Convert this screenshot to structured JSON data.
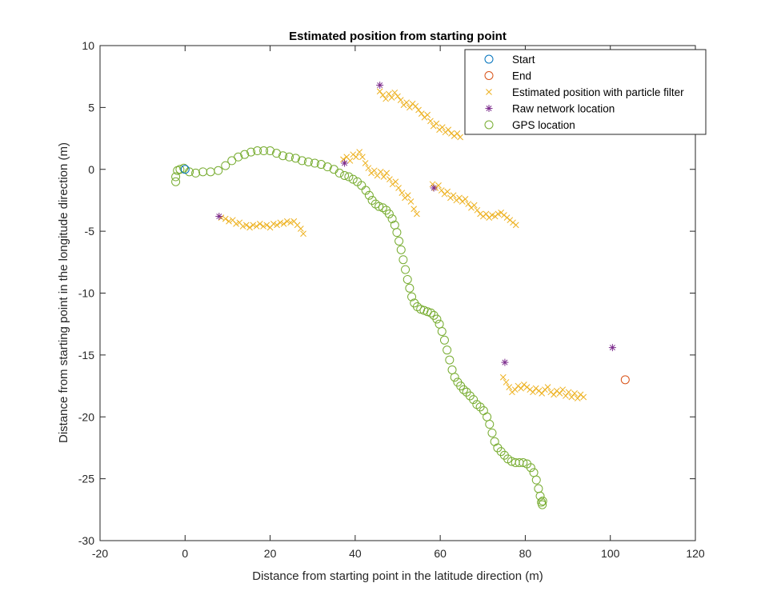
{
  "chart_data": {
    "type": "scatter",
    "title": "Estimated position from starting point",
    "xlabel": "Distance from starting point in the latitude direction (m)",
    "ylabel": "Distance from starting point in the longitude direction (m)",
    "xlim": [
      -20,
      120
    ],
    "ylim": [
      -30,
      10
    ],
    "xticks": [
      -20,
      0,
      20,
      40,
      60,
      80,
      100,
      120
    ],
    "yticks": [
      -30,
      -25,
      -20,
      -15,
      -10,
      -5,
      0,
      5,
      10
    ],
    "grid": false,
    "legend_position": "top-right",
    "series": [
      {
        "name": "Start",
        "marker": "circle",
        "color": "#0072BD",
        "points": [
          [
            0,
            0
          ]
        ]
      },
      {
        "name": "End",
        "marker": "circle",
        "color": "#D95319",
        "points": [
          [
            103.5,
            -17.0
          ]
        ]
      },
      {
        "name": "Estimated position with particle filter",
        "marker": "x",
        "color": "#EDB120",
        "points": [
          [
            8.5,
            -3.9
          ],
          [
            9.5,
            -4.0
          ],
          [
            10.3,
            -4.2
          ],
          [
            11.2,
            -4.1
          ],
          [
            12.0,
            -4.4
          ],
          [
            12.8,
            -4.3
          ],
          [
            13.6,
            -4.6
          ],
          [
            14.4,
            -4.5
          ],
          [
            15.2,
            -4.7
          ],
          [
            16.0,
            -4.5
          ],
          [
            16.8,
            -4.6
          ],
          [
            17.6,
            -4.4
          ],
          [
            18.4,
            -4.6
          ],
          [
            19.2,
            -4.5
          ],
          [
            20.0,
            -4.7
          ],
          [
            20.8,
            -4.4
          ],
          [
            21.6,
            -4.5
          ],
          [
            22.4,
            -4.3
          ],
          [
            23.2,
            -4.4
          ],
          [
            24.0,
            -4.2
          ],
          [
            24.8,
            -4.3
          ],
          [
            25.6,
            -4.2
          ],
          [
            26.4,
            -4.5
          ],
          [
            27.2,
            -4.8
          ],
          [
            27.8,
            -5.2
          ],
          [
            37.2,
            0.8
          ],
          [
            38.0,
            1.0
          ],
          [
            38.8,
            0.7
          ],
          [
            39.5,
            1.2
          ],
          [
            40.2,
            1.0
          ],
          [
            41.0,
            1.4
          ],
          [
            41.7,
            1.0
          ],
          [
            42.4,
            0.5
          ],
          [
            43.1,
            0.1
          ],
          [
            43.8,
            -0.3
          ],
          [
            44.5,
            -0.1
          ],
          [
            45.2,
            -0.5
          ],
          [
            46.0,
            -0.2
          ],
          [
            46.7,
            -0.6
          ],
          [
            47.4,
            -0.3
          ],
          [
            48.1,
            -0.8
          ],
          [
            48.8,
            -1.2
          ],
          [
            49.5,
            -1.0
          ],
          [
            50.2,
            -1.5
          ],
          [
            51.0,
            -1.9
          ],
          [
            51.7,
            -2.3
          ],
          [
            52.4,
            -2.1
          ],
          [
            53.1,
            -2.6
          ],
          [
            53.8,
            -3.2
          ],
          [
            54.5,
            -3.6
          ],
          [
            45.8,
            6.3
          ],
          [
            46.5,
            6.0
          ],
          [
            47.2,
            5.7
          ],
          [
            47.9,
            6.1
          ],
          [
            48.6,
            5.8
          ],
          [
            49.3,
            6.2
          ],
          [
            50.0,
            5.9
          ],
          [
            50.7,
            5.6
          ],
          [
            51.4,
            5.2
          ],
          [
            52.1,
            5.4
          ],
          [
            52.8,
            5.0
          ],
          [
            53.5,
            5.3
          ],
          [
            54.2,
            5.1
          ],
          [
            54.9,
            4.8
          ],
          [
            55.6,
            4.5
          ],
          [
            56.3,
            4.2
          ],
          [
            57.0,
            4.4
          ],
          [
            57.7,
            3.9
          ],
          [
            58.4,
            3.5
          ],
          [
            59.1,
            3.7
          ],
          [
            59.8,
            3.2
          ],
          [
            60.5,
            3.4
          ],
          [
            61.2,
            3.0
          ],
          [
            61.9,
            3.2
          ],
          [
            62.6,
            2.9
          ],
          [
            63.3,
            2.7
          ],
          [
            64.0,
            2.9
          ],
          [
            64.7,
            2.6
          ],
          [
            58.2,
            -1.2
          ],
          [
            58.9,
            -1.5
          ],
          [
            59.6,
            -1.3
          ],
          [
            60.3,
            -1.7
          ],
          [
            61.0,
            -2.0
          ],
          [
            61.7,
            -1.8
          ],
          [
            62.4,
            -2.3
          ],
          [
            63.1,
            -2.1
          ],
          [
            63.8,
            -2.5
          ],
          [
            64.5,
            -2.3
          ],
          [
            65.2,
            -2.6
          ],
          [
            65.9,
            -2.4
          ],
          [
            66.6,
            -2.8
          ],
          [
            67.3,
            -3.1
          ],
          [
            68.0,
            -2.9
          ],
          [
            68.7,
            -3.3
          ],
          [
            69.4,
            -3.6
          ],
          [
            70.1,
            -3.8
          ],
          [
            70.8,
            -3.6
          ],
          [
            71.5,
            -3.9
          ],
          [
            72.2,
            -3.7
          ],
          [
            72.9,
            -3.8
          ],
          [
            73.6,
            -3.6
          ],
          [
            74.3,
            -3.5
          ],
          [
            75.0,
            -3.7
          ],
          [
            75.7,
            -3.9
          ],
          [
            76.4,
            -4.1
          ],
          [
            77.1,
            -4.3
          ],
          [
            77.8,
            -4.5
          ],
          [
            74.8,
            -16.8
          ],
          [
            75.5,
            -17.2
          ],
          [
            76.2,
            -17.6
          ],
          [
            76.9,
            -18.0
          ],
          [
            77.6,
            -17.8
          ],
          [
            78.3,
            -17.5
          ],
          [
            79.0,
            -17.7
          ],
          [
            79.7,
            -17.4
          ],
          [
            80.4,
            -17.6
          ],
          [
            81.1,
            -17.8
          ],
          [
            81.8,
            -18.0
          ],
          [
            82.5,
            -17.7
          ],
          [
            83.2,
            -17.9
          ],
          [
            83.9,
            -18.1
          ],
          [
            84.6,
            -17.8
          ],
          [
            85.3,
            -17.6
          ],
          [
            86.0,
            -18.0
          ],
          [
            86.7,
            -18.2
          ],
          [
            87.4,
            -17.9
          ],
          [
            88.1,
            -18.1
          ],
          [
            88.8,
            -17.8
          ],
          [
            89.5,
            -18.3
          ],
          [
            90.2,
            -18.0
          ],
          [
            90.9,
            -18.4
          ],
          [
            91.6,
            -18.1
          ],
          [
            92.3,
            -18.5
          ],
          [
            93.0,
            -18.2
          ],
          [
            93.7,
            -18.4
          ]
        ]
      },
      {
        "name": "Raw network location",
        "marker": "asterisk",
        "color": "#7E2F8E",
        "points": [
          [
            8.0,
            -3.8
          ],
          [
            37.5,
            0.5
          ],
          [
            45.8,
            6.8
          ],
          [
            58.5,
            -1.5
          ],
          [
            75.2,
            -15.6
          ],
          [
            100.5,
            -14.4
          ]
        ]
      },
      {
        "name": "GPS location",
        "marker": "circle",
        "color": "#77AC30",
        "points": [
          [
            -2.2,
            -1.0
          ],
          [
            -2.2,
            -0.6
          ],
          [
            -1.8,
            -0.1
          ],
          [
            -1.2,
            0.0
          ],
          [
            -0.3,
            0.1
          ],
          [
            1.0,
            -0.2
          ],
          [
            2.5,
            -0.3
          ],
          [
            4.2,
            -0.2
          ],
          [
            6.0,
            -0.2
          ],
          [
            7.8,
            -0.1
          ],
          [
            9.5,
            0.3
          ],
          [
            11.0,
            0.7
          ],
          [
            12.5,
            1.0
          ],
          [
            14.0,
            1.2
          ],
          [
            15.5,
            1.4
          ],
          [
            17.0,
            1.5
          ],
          [
            18.5,
            1.5
          ],
          [
            20.0,
            1.5
          ],
          [
            21.5,
            1.3
          ],
          [
            23.0,
            1.1
          ],
          [
            24.5,
            1.0
          ],
          [
            26.0,
            0.9
          ],
          [
            27.5,
            0.7
          ],
          [
            29.0,
            0.6
          ],
          [
            30.5,
            0.5
          ],
          [
            32.0,
            0.4
          ],
          [
            33.5,
            0.2
          ],
          [
            35.0,
            0.0
          ],
          [
            36.3,
            -0.3
          ],
          [
            37.5,
            -0.5
          ],
          [
            38.5,
            -0.6
          ],
          [
            39.5,
            -0.8
          ],
          [
            40.5,
            -1.0
          ],
          [
            41.5,
            -1.3
          ],
          [
            42.5,
            -1.7
          ],
          [
            43.3,
            -2.1
          ],
          [
            44.0,
            -2.5
          ],
          [
            44.8,
            -2.8
          ],
          [
            45.6,
            -3.0
          ],
          [
            46.5,
            -3.1
          ],
          [
            47.3,
            -3.3
          ],
          [
            48.0,
            -3.6
          ],
          [
            48.7,
            -4.0
          ],
          [
            49.3,
            -4.5
          ],
          [
            49.8,
            -5.1
          ],
          [
            50.3,
            -5.8
          ],
          [
            50.8,
            -6.5
          ],
          [
            51.3,
            -7.3
          ],
          [
            51.8,
            -8.1
          ],
          [
            52.3,
            -8.9
          ],
          [
            52.8,
            -9.6
          ],
          [
            53.3,
            -10.3
          ],
          [
            53.9,
            -10.8
          ],
          [
            54.6,
            -11.1
          ],
          [
            55.4,
            -11.3
          ],
          [
            56.2,
            -11.4
          ],
          [
            57.0,
            -11.5
          ],
          [
            57.8,
            -11.6
          ],
          [
            58.5,
            -11.8
          ],
          [
            59.2,
            -12.1
          ],
          [
            59.8,
            -12.5
          ],
          [
            60.4,
            -13.1
          ],
          [
            61.0,
            -13.8
          ],
          [
            61.6,
            -14.6
          ],
          [
            62.2,
            -15.4
          ],
          [
            62.8,
            -16.2
          ],
          [
            63.4,
            -16.8
          ],
          [
            64.1,
            -17.2
          ],
          [
            64.8,
            -17.5
          ],
          [
            65.5,
            -17.8
          ],
          [
            66.2,
            -18.0
          ],
          [
            67.0,
            -18.3
          ],
          [
            67.8,
            -18.6
          ],
          [
            68.6,
            -19.0
          ],
          [
            69.4,
            -19.2
          ],
          [
            70.2,
            -19.5
          ],
          [
            71.0,
            -20.0
          ],
          [
            71.6,
            -20.6
          ],
          [
            72.2,
            -21.3
          ],
          [
            72.8,
            -22.0
          ],
          [
            73.5,
            -22.5
          ],
          [
            74.3,
            -22.8
          ],
          [
            75.1,
            -23.1
          ],
          [
            75.9,
            -23.4
          ],
          [
            76.8,
            -23.6
          ],
          [
            77.7,
            -23.7
          ],
          [
            78.6,
            -23.7
          ],
          [
            79.5,
            -23.7
          ],
          [
            80.4,
            -23.8
          ],
          [
            81.3,
            -24.1
          ],
          [
            82.0,
            -24.5
          ],
          [
            82.6,
            -25.1
          ],
          [
            83.1,
            -25.8
          ],
          [
            83.5,
            -26.4
          ],
          [
            83.8,
            -26.9
          ],
          [
            84.0,
            -27.1
          ],
          [
            84.1,
            -26.8
          ]
        ]
      }
    ],
    "colors": {
      "axes": "#262626",
      "background": "#ffffff"
    }
  }
}
